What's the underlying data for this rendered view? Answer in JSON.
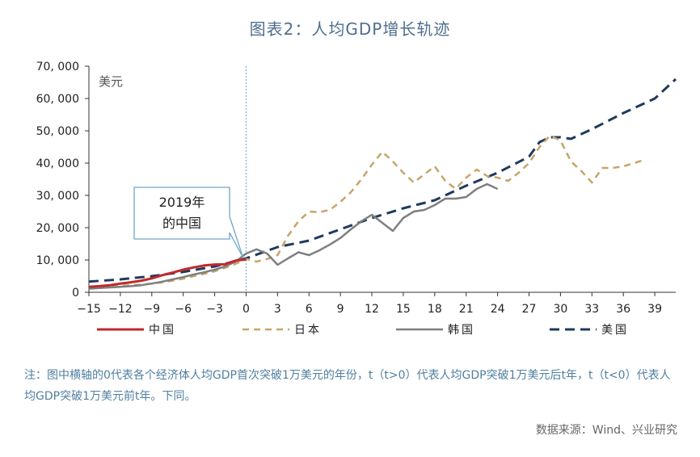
{
  "title": "图表2：人均GDP增长轨迹",
  "unit_label": "美元",
  "callout": {
    "line1": "2019年",
    "line2": "的中国"
  },
  "note": "注：图中横轴的0代表各个经济体人均GDP首次突破1万美元的年份，t（t>0）代表人均GDP突破1万美元后t年，t（t<0）代表人均GDP突破1万美元前t年。下同。",
  "source": "数据来源：Wind、兴业研究",
  "colors": {
    "china": "#c0282d",
    "japan": "#c8a46a",
    "korea": "#7f7f7f",
    "usa": "#1f3a5c",
    "refline": "#7fb2d6"
  },
  "chart_data": {
    "type": "line",
    "xlim": [
      -15,
      41
    ],
    "ylim": [
      0,
      70000
    ],
    "yticks": [
      0,
      10000,
      20000,
      30000,
      40000,
      50000,
      60000,
      70000
    ],
    "ytick_labels": [
      "0",
      "10, 000",
      "20, 000",
      "30, 000",
      "40, 000",
      "50, 000",
      "60, 000",
      "70, 000"
    ],
    "xticks": [
      -15,
      -12,
      -9,
      -6,
      -3,
      0,
      3,
      6,
      9,
      12,
      15,
      18,
      21,
      24,
      27,
      30,
      33,
      36,
      39
    ],
    "xtick_labels": [
      "−15",
      "−12",
      "−9",
      "−6",
      "−3",
      "0",
      "3",
      "6",
      "9",
      "12",
      "15",
      "18",
      "21",
      "24",
      "27",
      "30",
      "33",
      "36",
      "39"
    ],
    "reference_x": 0,
    "series": [
      {
        "name": "中国",
        "key": "china",
        "style": "solid",
        "width": 3,
        "x": [
          -15,
          -14,
          -13,
          -12,
          -11,
          -10,
          -9,
          -8,
          -7,
          -6,
          -5,
          -4,
          -3,
          -2,
          -1,
          0
        ],
        "y": [
          1700,
          1900,
          2200,
          2700,
          3100,
          3600,
          4300,
          5300,
          6100,
          7000,
          7700,
          8300,
          8600,
          8700,
          9800,
          10200
        ]
      },
      {
        "name": "日本",
        "key": "japan",
        "style": "dash",
        "width": 2.5,
        "x": [
          -15,
          -14,
          -13,
          -12,
          -11,
          -10,
          -9,
          -8,
          -7,
          -6,
          -5,
          -4,
          -3,
          -2,
          -1,
          0,
          1,
          2,
          3,
          4,
          5,
          6,
          7,
          8,
          9,
          10,
          11,
          12,
          13,
          14,
          15,
          16,
          17,
          18,
          19,
          20,
          21,
          22,
          23,
          24,
          25,
          26,
          27,
          28,
          29,
          30,
          31,
          32,
          33,
          34,
          35,
          36,
          37,
          38
        ],
        "y": [
          1400,
          1600,
          1800,
          2000,
          2200,
          2400,
          2700,
          3100,
          3600,
          4200,
          5000,
          5700,
          6500,
          7600,
          8800,
          10300,
          9500,
          10300,
          11500,
          17500,
          22000,
          25000,
          24800,
          25500,
          28000,
          31000,
          35000,
          39500,
          43500,
          40500,
          37000,
          34000,
          36500,
          39000,
          34500,
          32000,
          35500,
          38000,
          36000,
          35500,
          34500,
          37000,
          40000,
          45000,
          48500,
          47000,
          40500,
          37500,
          34000,
          38500,
          38500,
          39000,
          40000,
          41000
        ]
      },
      {
        "name": "韩国",
        "key": "korea",
        "style": "solid",
        "width": 2.5,
        "x": [
          -15,
          -14,
          -13,
          -12,
          -11,
          -10,
          -9,
          -8,
          -7,
          -6,
          -5,
          -4,
          -3,
          -2,
          -1,
          0,
          1,
          2,
          3,
          4,
          5,
          6,
          7,
          8,
          9,
          10,
          11,
          12,
          13,
          14,
          15,
          16,
          17,
          18,
          19,
          20,
          21,
          22,
          23,
          24
        ],
        "y": [
          1100,
          1300,
          1500,
          1700,
          1900,
          2200,
          2700,
          3300,
          4000,
          4700,
          5500,
          6200,
          7000,
          8000,
          9500,
          12000,
          13300,
          12000,
          8500,
          10500,
          12400,
          11500,
          13000,
          14800,
          16800,
          19500,
          22000,
          24000,
          21500,
          19000,
          23000,
          25000,
          25500,
          27000,
          29000,
          29000,
          29500,
          32000,
          33500,
          32000
        ]
      },
      {
        "name": "美国",
        "key": "usa",
        "style": "dash",
        "width": 3,
        "x": [
          -15,
          -12,
          -9,
          -6,
          -3,
          0,
          3,
          6,
          9,
          12,
          15,
          18,
          21,
          24,
          27,
          28,
          29,
          30,
          31,
          33,
          36,
          39,
          41
        ],
        "y": [
          3300,
          4000,
          5000,
          6300,
          8000,
          10500,
          14000,
          16000,
          19500,
          23000,
          26000,
          28500,
          33000,
          37000,
          42000,
          46500,
          48000,
          48000,
          47500,
          50500,
          55500,
          60000,
          66000
        ]
      }
    ]
  }
}
